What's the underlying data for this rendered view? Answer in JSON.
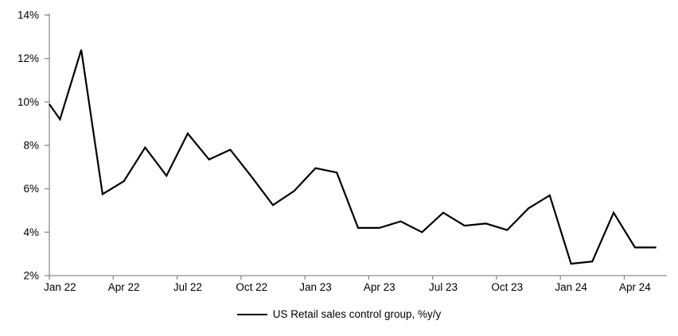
{
  "chart_data": {
    "type": "line",
    "title": "",
    "xlabel": "",
    "ylabel": "",
    "categories": [
      "Jan 22",
      "Feb 22",
      "Mar 22",
      "Apr 22",
      "May 22",
      "Jun 22",
      "Jul 22",
      "Aug 22",
      "Sep 22",
      "Oct 22",
      "Nov 22",
      "Dec 22",
      "Jan 23",
      "Feb 23",
      "Mar 23",
      "Apr 23",
      "May 23",
      "Jun 23",
      "Jul 23",
      "Aug 23",
      "Sep 23",
      "Oct 23",
      "Nov 23",
      "Dec 23",
      "Jan 24",
      "Feb 24",
      "Mar 24",
      "Apr 24",
      "May 24"
    ],
    "series": [
      {
        "name": "US Retail sales control group, %y/y",
        "color": "#000000",
        "values": [
          9.2,
          12.4,
          5.75,
          6.35,
          7.9,
          6.6,
          8.55,
          7.35,
          7.8,
          6.55,
          5.25,
          5.9,
          6.95,
          6.75,
          4.2,
          4.2,
          4.5,
          4.0,
          4.9,
          4.3,
          4.4,
          4.1,
          5.1,
          5.7,
          2.55,
          2.65,
          4.9,
          3.3,
          3.3
        ]
      }
    ],
    "edge_start_value": 9.9,
    "ylim": [
      2,
      14
    ],
    "y_step": 2,
    "y_tick_labels": [
      "2%",
      "4%",
      "6%",
      "8%",
      "10%",
      "12%",
      "14%"
    ],
    "x_tick_labels": [
      "Jan 22",
      "Apr 22",
      "Jul 22",
      "Oct 22",
      "Jan 23",
      "Apr 23",
      "Jul 23",
      "Oct 23",
      "Jan 24",
      "Apr 24"
    ],
    "x_label_every_n_months": 3,
    "grid": "off",
    "legend_position": "bottom-center",
    "axis_color": "#8c8c8c",
    "line_color": "#000000",
    "background_color": "#ffffff"
  },
  "legend": {
    "label": "US Retail sales control group, %y/y"
  }
}
